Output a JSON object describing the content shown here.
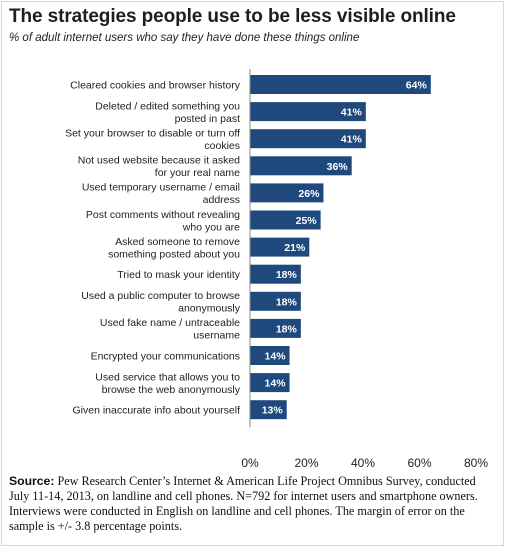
{
  "chart_data": {
    "type": "bar",
    "orientation": "horizontal",
    "title": "The strategies people use to be less visible online",
    "subtitle": "% of adult internet users who say they have done these things online",
    "categories": [
      "Cleared cookies and browser history",
      "Deleted / edited something you posted in past",
      "Set your browser to disable or turn off cookies",
      "Not used website because it asked for your real name",
      "Used temporary username / email address",
      "Post comments without revealing who you are",
      "Asked someone to remove something posted about you",
      "Tried to mask your identity",
      "Used a public computer to browse anonymously",
      "Used fake name / untraceable username",
      "Encrypted your communications",
      "Used service that allows you to browse the web anonymously",
      "Given inaccurate info about yourself"
    ],
    "values": [
      64,
      41,
      41,
      36,
      26,
      25,
      21,
      18,
      18,
      18,
      14,
      14,
      13
    ],
    "value_labels": [
      "64%",
      "41%",
      "41%",
      "36%",
      "26%",
      "25%",
      "21%",
      "18%",
      "18%",
      "18%",
      "14%",
      "14%",
      "13%"
    ],
    "xlim": [
      0,
      80
    ],
    "x_ticks": [
      "0%",
      "20%",
      "40%",
      "60%",
      "80%"
    ],
    "bar_color": "#1f497d",
    "grid": false
  },
  "source": {
    "label": "Source:",
    "text": "Pew Research Center’s Internet & American Life Project Omnibus Survey, conducted July 11-14, 2013, on landline and cell phones. N=792 for internet users and smartphone owners. Interviews were conducted in English on landline and cell phones. The margin of error on the sample is +/- 3.8 percentage points."
  }
}
